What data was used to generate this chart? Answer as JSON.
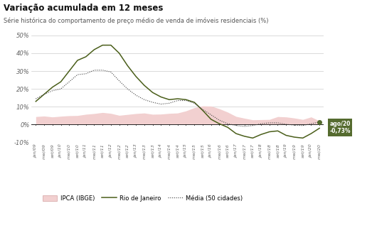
{
  "title": "Variação acumulada em 12 meses",
  "subtitle": "Série histórica do comportamento de preço médio de venda de imóveis residenciais (%)",
  "ylim": [
    -10,
    50
  ],
  "yticks": [
    -10,
    0,
    10,
    20,
    30,
    40,
    50
  ],
  "ytick_labels": [
    "-10%",
    "0%",
    "10%",
    "20%",
    "30%",
    "40%",
    "50%"
  ],
  "annotation_text": "ago/20\n-0,73%",
  "annotation_bg": "#556b2f",
  "legend_items": [
    "IPCA (IBGE)",
    "Rio de Janeiro",
    "Média (50 cidades)"
  ],
  "colors": {
    "rio": "#4a5e1a",
    "ipca_fill": "#f2d0d0",
    "media": "#444444",
    "zero_line": "#222222"
  },
  "x_labels": [
    "jan/09",
    "mai/09",
    "set/09",
    "jan/10",
    "mai/10",
    "set/10",
    "jan/11",
    "mai/11",
    "set/11",
    "jan/12",
    "mai/12",
    "set/12",
    "jan/13",
    "mai/13",
    "set/13",
    "jan/14",
    "mai/14",
    "set/14",
    "jan/15",
    "mai/15",
    "set/15",
    "jan/16",
    "mai/16",
    "set/16",
    "jan/17",
    "mai/17",
    "set/17",
    "jan/18",
    "mai/18",
    "set/18",
    "jan/19",
    "mai/19",
    "set/19",
    "jan/20",
    "mai/20"
  ],
  "ipca_values": [
    4.5,
    4.8,
    4.3,
    4.7,
    5.0,
    5.1,
    5.8,
    6.2,
    6.8,
    6.3,
    5.2,
    5.7,
    6.2,
    6.5,
    5.8,
    5.9,
    6.3,
    6.5,
    7.7,
    9.5,
    10.5,
    10.4,
    8.9,
    7.0,
    4.6,
    3.6,
    2.7,
    2.8,
    2.9,
    4.5,
    4.3,
    3.7,
    2.9,
    4.3,
    2.1
  ],
  "rio_values": [
    13.0,
    17.0,
    21.0,
    24.0,
    30.0,
    36.0,
    38.0,
    42.0,
    44.5,
    44.5,
    40.0,
    33.0,
    27.0,
    22.0,
    18.0,
    15.5,
    14.0,
    14.5,
    14.0,
    12.5,
    8.0,
    3.0,
    0.5,
    -1.5,
    -5.0,
    -6.5,
    -7.5,
    -5.5,
    -4.0,
    -3.5,
    -6.0,
    -7.0,
    -7.5,
    -5.0,
    -2.0
  ],
  "media_values": [
    14.5,
    17.0,
    19.0,
    20.0,
    24.0,
    28.0,
    28.5,
    30.5,
    30.5,
    29.5,
    24.5,
    20.0,
    16.5,
    14.0,
    12.5,
    11.5,
    12.0,
    13.5,
    13.5,
    12.0,
    8.5,
    5.5,
    2.5,
    0.5,
    -0.5,
    -1.0,
    -0.5,
    0.5,
    1.0,
    1.0,
    0.2,
    -0.3,
    -0.5,
    0.5,
    1.5
  ]
}
